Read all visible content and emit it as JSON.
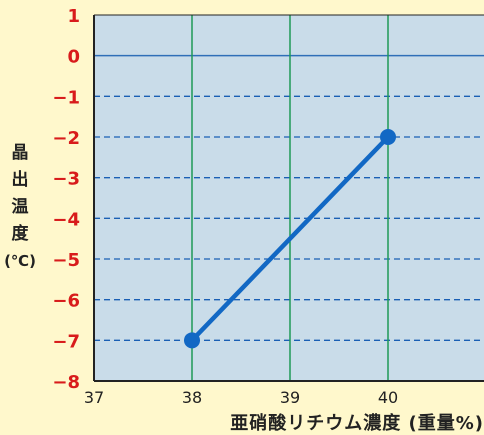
{
  "colors": {
    "background": "#fff8cc",
    "plot_bg": "#c9dce9",
    "axis_border": "#222222",
    "major_grid": "#1f9a57",
    "zero_line": "#2f6fb8",
    "minor_grid": "#1a5fb4",
    "series": "#1268c4",
    "ytick_text": "#d81b1b",
    "xtick_text": "#222222"
  },
  "chart_data": {
    "type": "line",
    "xlabel": "亜硝酸リチウム濃度 (重量%)",
    "ylabel_chars": [
      "晶",
      "出",
      "温",
      "度",
      "(℃)"
    ],
    "xlim": [
      37,
      41
    ],
    "ylim": [
      -8,
      1
    ],
    "xticks": [
      "37",
      "38",
      "39",
      "40"
    ],
    "yticks": [
      "1",
      "0",
      "−1",
      "−2",
      "−3",
      "−4",
      "−5",
      "−6",
      "−7",
      "−8"
    ],
    "ytick_values": [
      1,
      0,
      -1,
      -2,
      -3,
      -4,
      -5,
      -6,
      -7,
      -8
    ],
    "xtick_values": [
      37,
      38,
      39,
      40
    ],
    "vertical_gridlines_x": [
      38,
      39,
      40
    ],
    "horizontal_dashed_y": [
      -1,
      -2,
      -3,
      -4,
      -5,
      -6,
      -7
    ],
    "horizontal_solid_y": [
      0
    ],
    "series": [
      {
        "x": [
          38,
          40
        ],
        "y": [
          -7,
          -2
        ]
      }
    ]
  }
}
